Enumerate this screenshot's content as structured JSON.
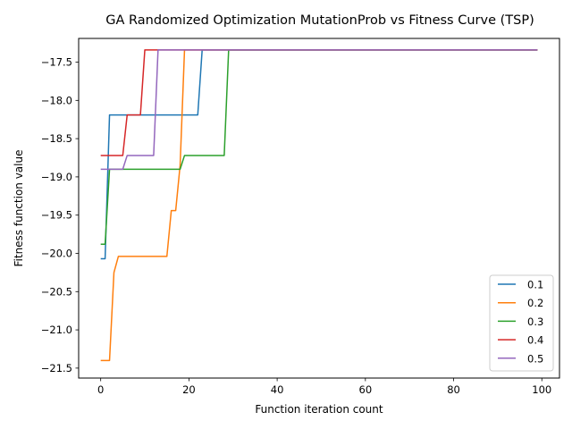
{
  "chart_data": {
    "type": "line",
    "title": "GA Randomized Optimization MutationProb vs Fitness Curve (TSP)",
    "xlabel": "Function iteration count",
    "ylabel": "Fitness function value",
    "xlim": [
      -5,
      104
    ],
    "ylim": [
      -21.63,
      -17.19
    ],
    "x_ticks": [
      0,
      20,
      40,
      60,
      80,
      100
    ],
    "y_ticks": [
      -21.5,
      -21.0,
      -20.5,
      -20.0,
      -19.5,
      -19.0,
      -18.5,
      -18.0,
      -17.5
    ],
    "y_tick_labels": [
      "−21.5",
      "−21.0",
      "−20.5",
      "−20.0",
      "−19.5",
      "−19.0",
      "−18.5",
      "−18.0",
      "−17.5"
    ],
    "grid": false,
    "legend_position": "lower right",
    "series": [
      {
        "name": "0.1",
        "color": "#1f77b4",
        "points": [
          [
            0,
            -20.07
          ],
          [
            1,
            -20.07
          ],
          [
            2,
            -18.19
          ],
          [
            22,
            -18.19
          ],
          [
            23,
            -17.34
          ],
          [
            99,
            -17.34
          ]
        ]
      },
      {
        "name": "0.2",
        "color": "#ff7f0e",
        "points": [
          [
            0,
            -21.4
          ],
          [
            2,
            -21.4
          ],
          [
            3,
            -20.25
          ],
          [
            4,
            -20.04
          ],
          [
            15,
            -20.04
          ],
          [
            16,
            -19.44
          ],
          [
            17,
            -19.44
          ],
          [
            18,
            -18.85
          ],
          [
            19,
            -17.34
          ],
          [
            99,
            -17.34
          ]
        ]
      },
      {
        "name": "0.3",
        "color": "#2ca02c",
        "points": [
          [
            0,
            -19.88
          ],
          [
            1,
            -19.88
          ],
          [
            2,
            -18.9
          ],
          [
            18,
            -18.9
          ],
          [
            19,
            -18.72
          ],
          [
            28,
            -18.72
          ],
          [
            29,
            -17.34
          ],
          [
            99,
            -17.34
          ]
        ]
      },
      {
        "name": "0.4",
        "color": "#d62728",
        "points": [
          [
            0,
            -18.72
          ],
          [
            5,
            -18.72
          ],
          [
            6,
            -18.19
          ],
          [
            9,
            -18.19
          ],
          [
            10,
            -17.34
          ],
          [
            99,
            -17.34
          ]
        ]
      },
      {
        "name": "0.5",
        "color": "#9467bd",
        "points": [
          [
            0,
            -18.9
          ],
          [
            5,
            -18.9
          ],
          [
            6,
            -18.72
          ],
          [
            12,
            -18.72
          ],
          [
            13,
            -17.34
          ],
          [
            99,
            -17.34
          ]
        ]
      }
    ]
  }
}
